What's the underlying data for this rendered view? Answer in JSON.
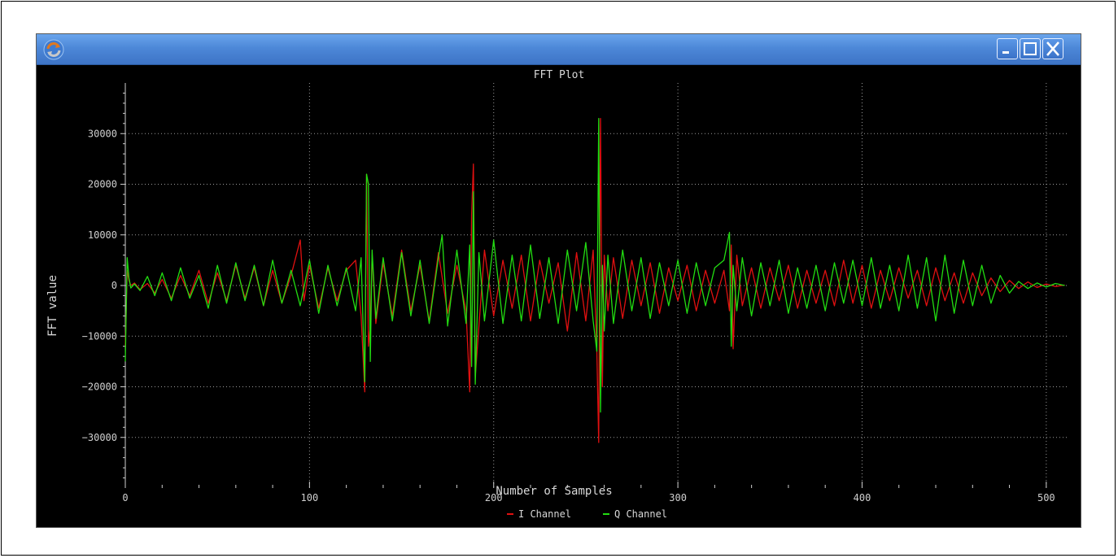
{
  "window": {
    "icon": "refresh-arrows-icon",
    "buttons": [
      {
        "name": "minimize-icon"
      },
      {
        "name": "maximize-icon"
      },
      {
        "name": "close-icon"
      }
    ],
    "titlebar_color": "#4d88d8"
  },
  "chart_data": {
    "type": "line",
    "title": "FFT Plot",
    "xlabel": "Number of Samples",
    "ylabel": "FFT value",
    "xlim": [
      0,
      512
    ],
    "ylim": [
      -40000,
      40000
    ],
    "grid": true,
    "background": "#000000",
    "x_ticks": [
      0,
      100,
      200,
      300,
      400,
      500
    ],
    "y_ticks": [
      30000,
      20000,
      10000,
      0,
      -10000,
      -20000,
      -30000
    ],
    "x_tick_labels": [
      "0",
      "100",
      "200",
      "300",
      "400",
      "500"
    ],
    "y_tick_labels": [
      "30000",
      "20000",
      "10000",
      "0",
      "−10000",
      "−20000",
      "−30000"
    ],
    "legend_position": "bottom-center",
    "series": [
      {
        "name": "I Channel",
        "color": "#e01010",
        "x": [
          0,
          1,
          2,
          3,
          5,
          8,
          12,
          16,
          20,
          25,
          30,
          35,
          40,
          45,
          50,
          55,
          60,
          65,
          70,
          75,
          80,
          85,
          90,
          95,
          97,
          100,
          105,
          110,
          115,
          120,
          125,
          128,
          130,
          131,
          132,
          133,
          134,
          136,
          140,
          145,
          150,
          155,
          160,
          165,
          170,
          175,
          180,
          185,
          187,
          188,
          189,
          190,
          192,
          195,
          200,
          205,
          210,
          215,
          220,
          225,
          230,
          235,
          240,
          245,
          250,
          254,
          256,
          257,
          258,
          259,
          260,
          262,
          265,
          270,
          275,
          280,
          285,
          290,
          295,
          300,
          305,
          310,
          315,
          320,
          325,
          328,
          329,
          330,
          332,
          335,
          340,
          345,
          350,
          355,
          360,
          365,
          370,
          375,
          380,
          385,
          390,
          395,
          400,
          405,
          410,
          415,
          420,
          425,
          430,
          435,
          440,
          445,
          450,
          455,
          460,
          465,
          470,
          475,
          480,
          485,
          490,
          495,
          500,
          505,
          510
        ],
        "values": [
          -12000,
          3000,
          1000,
          0,
          500,
          -800,
          400,
          -1500,
          1200,
          -2500,
          2000,
          -2000,
          3000,
          -3500,
          2500,
          -3000,
          4000,
          -2500,
          3500,
          -4000,
          3000,
          -3500,
          2000,
          9000,
          -3000,
          4000,
          -4500,
          3500,
          -3000,
          3000,
          5000,
          -6000,
          -21000,
          22000,
          -12000,
          -8000,
          6000,
          -7500,
          4500,
          -6000,
          7000,
          -5000,
          4000,
          -7000,
          6500,
          -5500,
          4000,
          -5000,
          -21000,
          14000,
          24000,
          -18000,
          -8000,
          7000,
          -6000,
          5000,
          -4500,
          6000,
          -7000,
          5000,
          -3500,
          4500,
          -9000,
          6500,
          -7000,
          7000,
          -13000,
          -31000,
          33000,
          -20000,
          6000,
          -5000,
          5500,
          -6500,
          5000,
          -4000,
          4500,
          -5500,
          3500,
          -3000,
          4000,
          -5000,
          3000,
          -3500,
          3000,
          -5000,
          8000,
          -12500,
          6000,
          -4000,
          3500,
          -4500,
          3500,
          -3000,
          4000,
          -4500,
          3000,
          -3500,
          3000,
          -4000,
          5000,
          -3500,
          4000,
          -4500,
          3000,
          -3000,
          3500,
          -2500,
          3000,
          -4000,
          3500,
          -3000,
          2500,
          -3500,
          2500,
          -2000,
          1500,
          -1200,
          1000,
          -600,
          700,
          -400,
          300,
          -200,
          100
        ]
      },
      {
        "name": "Q Channel",
        "color": "#22dd11",
        "x": [
          0,
          1,
          2,
          3,
          5,
          8,
          12,
          16,
          20,
          25,
          30,
          35,
          40,
          45,
          50,
          55,
          60,
          65,
          70,
          75,
          80,
          85,
          90,
          95,
          100,
          105,
          110,
          115,
          120,
          125,
          128,
          130,
          131,
          132,
          133,
          134,
          136,
          140,
          145,
          150,
          155,
          160,
          165,
          170,
          172,
          175,
          180,
          185,
          187,
          188,
          189,
          190,
          192,
          195,
          200,
          205,
          210,
          215,
          220,
          225,
          230,
          235,
          240,
          245,
          250,
          254,
          256,
          257,
          258,
          259,
          260,
          262,
          265,
          270,
          275,
          280,
          285,
          290,
          295,
          300,
          305,
          310,
          315,
          320,
          325,
          328,
          329,
          330,
          332,
          335,
          340,
          345,
          350,
          355,
          360,
          365,
          370,
          375,
          380,
          385,
          390,
          395,
          400,
          405,
          410,
          415,
          420,
          425,
          430,
          435,
          440,
          445,
          450,
          455,
          460,
          465,
          470,
          475,
          480,
          485,
          490,
          495,
          500,
          505,
          510
        ],
        "values": [
          -15000,
          5500,
          1500,
          -500,
          300,
          -1000,
          1800,
          -2000,
          2500,
          -3000,
          3500,
          -2500,
          2000,
          -4500,
          4000,
          -3500,
          4500,
          -3000,
          4000,
          -4000,
          5000,
          -3500,
          3000,
          -4000,
          5000,
          -5500,
          4000,
          -4000,
          3500,
          -5000,
          5500,
          -19000,
          22000,
          20000,
          -15000,
          7000,
          -6500,
          5500,
          -7000,
          6500,
          -6000,
          5000,
          -7500,
          5500,
          10000,
          -8000,
          7000,
          -7500,
          8000,
          -16000,
          18500,
          -19500,
          6500,
          -7000,
          9000,
          -7500,
          6000,
          -7000,
          8000,
          -6500,
          5500,
          -7500,
          7000,
          -5000,
          8500,
          -7000,
          -13000,
          33000,
          -25000,
          4000,
          -9000,
          6000,
          -7500,
          7000,
          -5000,
          5500,
          -6500,
          4500,
          -4000,
          5000,
          -5500,
          4500,
          -4000,
          3500,
          5000,
          10500,
          -12000,
          4000,
          -5000,
          5500,
          -6000,
          4500,
          -4000,
          5000,
          -5500,
          3500,
          -4500,
          4000,
          -5000,
          4500,
          -3500,
          5000,
          -4000,
          5500,
          -4500,
          4000,
          -5000,
          6000,
          -4500,
          5500,
          -7000,
          6000,
          -5500,
          5000,
          -4000,
          4000,
          -3500,
          2000,
          -1500,
          800,
          -600,
          500,
          -300,
          400,
          0
        ]
      }
    ]
  }
}
